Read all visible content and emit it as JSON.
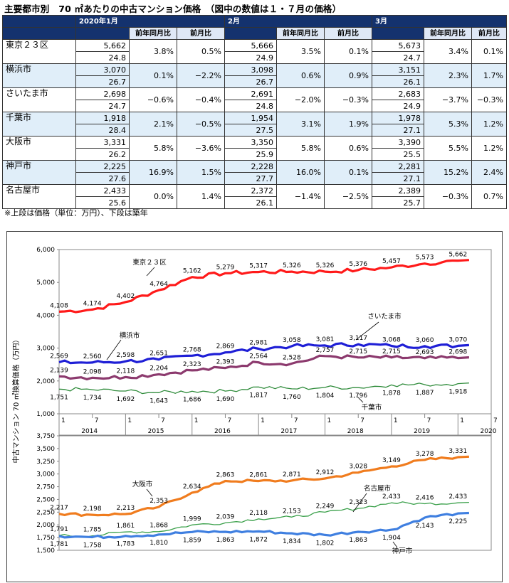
{
  "title": "主要都市別　70 ㎡あたりの中古マンション価格　（図中の数値は１・７月の価格）",
  "table": {
    "months": [
      "2020年1月",
      "2月",
      "3月"
    ],
    "subheaders": [
      "前年同月比",
      "前月比"
    ],
    "rows": [
      {
        "city": "東京２３区",
        "cells": [
          [
            "5,662",
            "24.8",
            "3.8%",
            "0.5%"
          ],
          [
            "5,666",
            "24.9",
            "3.5%",
            "0.1%"
          ],
          [
            "5,673",
            "24.7",
            "3.4%",
            "0.1%"
          ]
        ]
      },
      {
        "city": "横浜市",
        "cells": [
          [
            "3,070",
            "26.7",
            "0.1%",
            "−2.2%"
          ],
          [
            "3,098",
            "26.7",
            "0.6%",
            "0.9%"
          ],
          [
            "3,151",
            "26.1",
            "2.3%",
            "1.7%"
          ]
        ]
      },
      {
        "city": "さいたま市",
        "cells": [
          [
            "2,698",
            "24.7",
            "−0.6%",
            "−0.4%"
          ],
          [
            "2,691",
            "24.8",
            "−2.0%",
            "−0.3%"
          ],
          [
            "2,683",
            "24.9",
            "−3.7%",
            "−0.3%"
          ]
        ]
      },
      {
        "city": "千葉市",
        "cells": [
          [
            "1,918",
            "28.4",
            "2.1%",
            "−0.5%"
          ],
          [
            "1,954",
            "27.5",
            "3.1%",
            "1.9%"
          ],
          [
            "1,978",
            "27.1",
            "5.3%",
            "1.2%"
          ]
        ]
      },
      {
        "city": "大阪市",
        "cells": [
          [
            "3,331",
            "26.2",
            "5.8%",
            "−3.6%"
          ],
          [
            "3,350",
            "25.9",
            "5.8%",
            "0.6%"
          ],
          [
            "3,390",
            "25.5",
            "5.5%",
            "1.2%"
          ]
        ]
      },
      {
        "city": "神戸市",
        "cells": [
          [
            "2,225",
            "27.6",
            "16.9%",
            "1.5%"
          ],
          [
            "2,228",
            "27.7",
            "16.0%",
            "0.1%"
          ],
          [
            "2,281",
            "27.1",
            "15.2%",
            "2.4%"
          ]
        ]
      },
      {
        "city": "名古屋市",
        "cells": [
          [
            "2,433",
            "25.6",
            "0.0%",
            "1.4%"
          ],
          [
            "2,372",
            "26.1",
            "−1.4%",
            "−2.5%"
          ],
          [
            "2,389",
            "25.7",
            "−0.3%",
            "0.7%"
          ]
        ]
      }
    ]
  },
  "note": "※上段は価格（単位：万円）、下段は築年",
  "colors": {
    "header_dark": "#14326e",
    "row_blue": "#e0eef9",
    "tokyo": "#ff1a1a",
    "yokohama": "#1f1fd6",
    "saitama": "#8c3a6e",
    "chiba": "#2e8b3a",
    "osaka": "#f07c1e",
    "nagoya": "#3aa04a",
    "kobe": "#3f7fe0"
  },
  "chart_data": [
    {
      "type": "line",
      "ylabel": "中古マンション 70 ㎡換算価格（万円）",
      "ylim": [
        1000,
        6000
      ],
      "yticks": [
        "1,000",
        "2,000",
        "3,000",
        "4,000",
        "5,000",
        "6,000"
      ],
      "xlim": [
        "2014-01",
        "2020-07"
      ],
      "xticks_month": [
        "1",
        "7",
        "1",
        "7",
        "1",
        "7",
        "1",
        "7",
        "1",
        "7",
        "1",
        "7",
        "1",
        "7"
      ],
      "xticks_year": [
        "2014",
        "2015",
        "2016",
        "2017",
        "2018",
        "2019",
        "2020"
      ],
      "series": [
        {
          "name": "東京２３区",
          "color_key": "tokyo",
          "labels": [
            "4,108",
            "4,174",
            "4,402",
            "4,764",
            "5,162",
            "5,279",
            "5,317",
            "5,326",
            "5,326",
            "5,376",
            "5,457",
            "5,573",
            "5,662"
          ],
          "values": [
            4108,
            4174,
            4402,
            4764,
            5162,
            5279,
            5317,
            5326,
            5326,
            5376,
            5457,
            5573,
            5662
          ]
        },
        {
          "name": "横浜市",
          "color_key": "yokohama",
          "labels": [
            "2,569",
            "2,560",
            "2,598",
            "2,651",
            "2,768",
            "2,869",
            "2,981",
            "3,058",
            "3,081",
            "3,117",
            "3,068",
            "3,060",
            "3,070"
          ],
          "values": [
            2569,
            2560,
            2598,
            2651,
            2768,
            2869,
            2981,
            3058,
            3081,
            3117,
            3068,
            3060,
            3070
          ]
        },
        {
          "name": "さいたま市",
          "color_key": "saitama",
          "labels": [
            "2,139",
            "2,098",
            "2,118",
            "2,204",
            "2,323",
            "2,393",
            "2,564",
            "2,528",
            "2,757",
            "2,715",
            "2,715",
            "2,693",
            "2,698"
          ],
          "values": [
            2139,
            2098,
            2118,
            2204,
            2323,
            2393,
            2564,
            2528,
            2757,
            2715,
            2715,
            2693,
            2698
          ]
        },
        {
          "name": "千葉市",
          "color_key": "chiba",
          "labels": [
            "1,751",
            "1,734",
            "1,692",
            "1,643",
            "1,686",
            "1,690",
            "1,817",
            "1,760",
            "1,804",
            "1,796",
            "1,878",
            "1,887",
            "1,918"
          ],
          "values": [
            1751,
            1734,
            1692,
            1643,
            1686,
            1690,
            1817,
            1760,
            1804,
            1796,
            1878,
            1887,
            1918
          ]
        }
      ]
    },
    {
      "type": "line",
      "ylim": [
        1500,
        3750
      ],
      "yticks": [
        "1,500",
        "1,750",
        "2,000",
        "2,250",
        "2,500",
        "2,750",
        "3,000",
        "3,250",
        "3,500",
        "3,750"
      ],
      "series": [
        {
          "name": "大阪市",
          "color_key": "osaka",
          "labels": [
            "2,217",
            "2,198",
            "2,213",
            "2,353",
            "2,634",
            "2,863",
            "2,861",
            "2,871",
            "2,912",
            "3,028",
            "3,149",
            "3,278",
            "3,331"
          ],
          "values": [
            2217,
            2198,
            2213,
            2353,
            2634,
            2863,
            2861,
            2871,
            2912,
            3028,
            3149,
            3278,
            3331
          ]
        },
        {
          "name": "名古屋市",
          "color_key": "nagoya",
          "labels": [
            "1,791",
            "1,785",
            "1,861",
            "1,868",
            "1,999",
            "2,039",
            "2,118",
            "2,153",
            "2,249",
            "2,323",
            "2,433",
            "2,416",
            "2,433"
          ],
          "values": [
            1791,
            1785,
            1861,
            1868,
            1999,
            2039,
            2118,
            2153,
            2249,
            2323,
            2433,
            2416,
            2433
          ]
        },
        {
          "name": "神戸市",
          "color_key": "kobe",
          "labels": [
            "1,781",
            "1,758",
            "1,783",
            "1,810",
            "1,859",
            "1,863",
            "1,872",
            "1,834",
            "1,802",
            "1,863",
            "1,904",
            "2,143",
            "2,225"
          ],
          "values": [
            1781,
            1758,
            1783,
            1810,
            1859,
            1863,
            1872,
            1834,
            1802,
            1863,
            1904,
            2143,
            2225
          ]
        }
      ]
    }
  ]
}
